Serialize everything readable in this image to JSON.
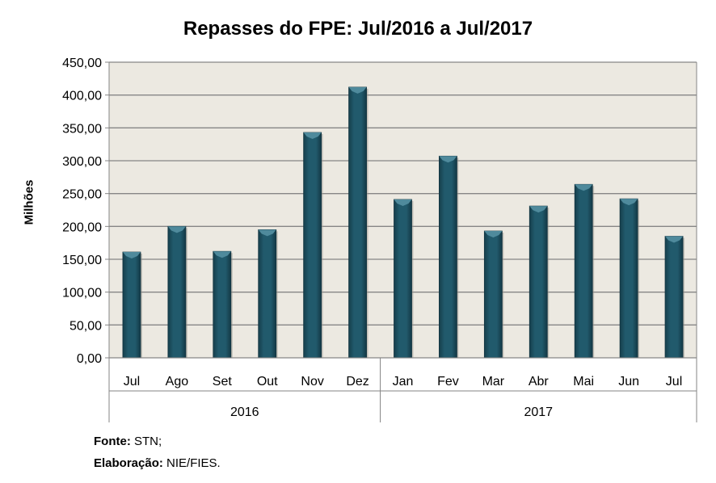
{
  "chart_data": {
    "type": "bar",
    "title": "Repasses do FPE: Jul/2016 a Jul/2017",
    "xlabel": "",
    "ylabel": "Milhões",
    "ylim": [
      0,
      450
    ],
    "yticks": [
      "0,00",
      "50,00",
      "100,00",
      "150,00",
      "200,00",
      "250,00",
      "300,00",
      "350,00",
      "400,00",
      "450,00"
    ],
    "grid": true,
    "categories": [
      "Jul",
      "Ago",
      "Set",
      "Out",
      "Nov",
      "Dez",
      "Jan",
      "Fev",
      "Mar",
      "Abr",
      "Mai",
      "Jun",
      "Jul"
    ],
    "groups": [
      {
        "label": "2016",
        "count": 6
      },
      {
        "label": "2017",
        "count": 7
      }
    ],
    "values": [
      161,
      200,
      162,
      195,
      343,
      412,
      241,
      307,
      193,
      231,
      264,
      242,
      185
    ],
    "bar_color": "#215a6c",
    "plot_bg": "#ece9e1"
  },
  "footer": {
    "source_label": "Fonte:",
    "source_value": "STN;",
    "made_label": "Elaboração:",
    "made_value": "NIE/FIES."
  }
}
